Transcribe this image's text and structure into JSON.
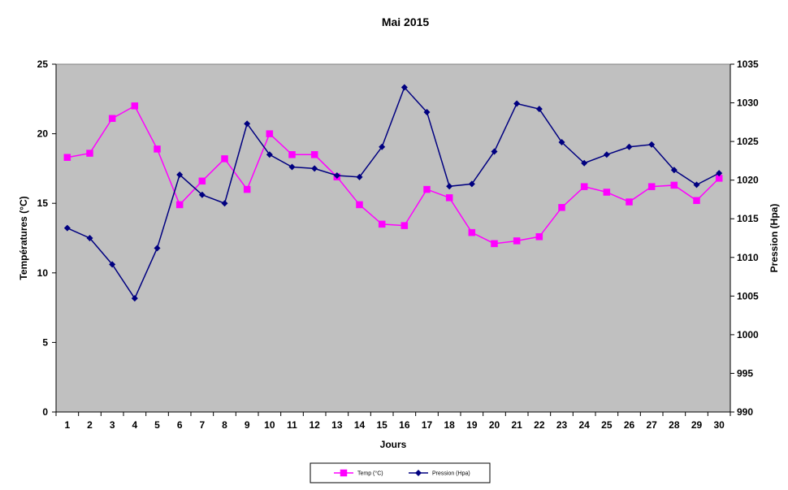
{
  "chart_data": {
    "type": "line",
    "title": "Mai 2015",
    "xlabel": "Jours",
    "ylabel_left": "Températures (°C)",
    "ylabel_right": "Pression (Hpa)",
    "x": [
      1,
      2,
      3,
      4,
      5,
      6,
      7,
      8,
      9,
      10,
      11,
      12,
      13,
      14,
      15,
      16,
      17,
      18,
      19,
      20,
      21,
      22,
      23,
      24,
      25,
      26,
      27,
      28,
      29,
      30
    ],
    "ylim_left": [
      0,
      25
    ],
    "yticks_left": [
      0,
      5,
      10,
      15,
      20,
      25
    ],
    "ylim_right": [
      990,
      1035
    ],
    "yticks_right": [
      990,
      995,
      1000,
      1005,
      1010,
      1015,
      1020,
      1025,
      1030,
      1035
    ],
    "grid": false,
    "legend_position": "bottom-center",
    "plot_background": "#c0c0c0",
    "series": [
      {
        "name": "Temp (°C)",
        "axis": "left",
        "color": "#ff00ff",
        "marker": "square",
        "values": [
          18.3,
          18.6,
          21.1,
          22.0,
          18.9,
          14.9,
          16.6,
          18.2,
          16.0,
          20.0,
          18.5,
          18.5,
          16.9,
          14.9,
          13.5,
          13.4,
          16.0,
          15.4,
          12.9,
          12.1,
          12.3,
          12.6,
          14.7,
          16.2,
          15.8,
          15.1,
          16.2,
          16.3,
          15.2,
          16.8
        ]
      },
      {
        "name": "Pression (Hpa)",
        "axis": "right",
        "color": "#000080",
        "marker": "diamond",
        "values": [
          1013.8,
          1012.5,
          1009.1,
          1004.7,
          1011.2,
          1020.7,
          1018.1,
          1017.0,
          1027.3,
          1023.3,
          1021.7,
          1021.5,
          1020.6,
          1020.4,
          1024.3,
          1032.0,
          1028.8,
          1019.2,
          1019.5,
          1023.7,
          1029.9,
          1029.2,
          1024.9,
          1022.2,
          1023.3,
          1024.3,
          1024.6,
          1021.3,
          1019.4,
          1020.9
        ]
      }
    ]
  }
}
